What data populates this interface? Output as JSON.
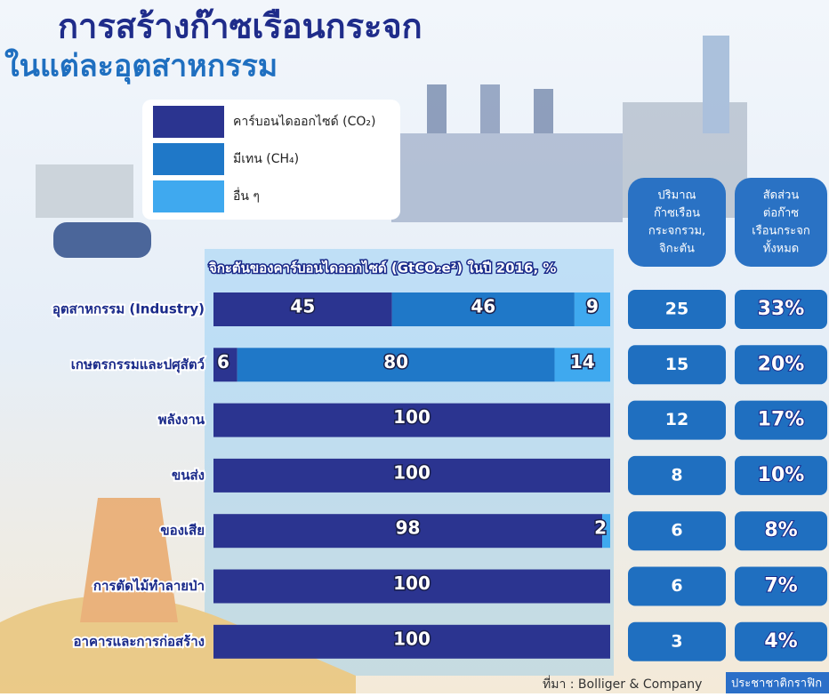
{
  "chart_data": {
    "type": "stacked_barh",
    "title": "การสร้างก๊าซเรือนกระจก",
    "subtitle": "ในแต่ละอุตสาหกรรม",
    "axis_label": "จิกะตันของคาร์บอนไดออกไซด์ (GtCO₂e²) ในปี 2016, %",
    "categories": [
      "อุตสาหกรรม (Industry)",
      "เกษตรกรรมและปศุสัตว์",
      "พลังงาน",
      "ขนส่ง",
      "ของเสีย",
      "การตัดไม้ทำลายป่า",
      "อาคารและการก่อสร้าง"
    ],
    "xlim": [
      0,
      100
    ],
    "series": [
      {
        "name": "คาร์บอนไดออกไซด์ (CO₂)",
        "color": "#2b3490",
        "values": [
          45,
          6,
          100,
          100,
          98,
          100,
          100
        ]
      },
      {
        "name": "มีเทน (CH₄)",
        "color": "#1f78c8",
        "values": [
          46,
          80,
          null,
          null,
          null,
          null,
          null
        ]
      },
      {
        "name": "อื่น ๆ",
        "color": "#3fa9ef",
        "values": [
          9,
          14,
          null,
          null,
          2,
          null,
          null
        ]
      }
    ],
    "columns": [
      {
        "header": [
          "ปริมาณ",
          "ก๊าซเรือน",
          "กระจกรวม,",
          "จิกะตัน"
        ],
        "values": [
          25,
          15,
          12,
          8,
          6,
          6,
          3
        ]
      },
      {
        "header": [
          "สัดส่วน",
          "ต่อก๊าซ",
          "เรือนกระจก",
          "ทั้งหมด"
        ],
        "values": [
          33,
          20,
          17,
          10,
          8,
          7,
          4
        ],
        "value_labels": [
          "33%",
          "20%",
          "17%",
          "10%",
          "8%",
          "7%",
          "4%"
        ]
      }
    ],
    "source": "ที่มา : Bolliger & Company",
    "brand": "ประชาชาติกราฟิก"
  }
}
